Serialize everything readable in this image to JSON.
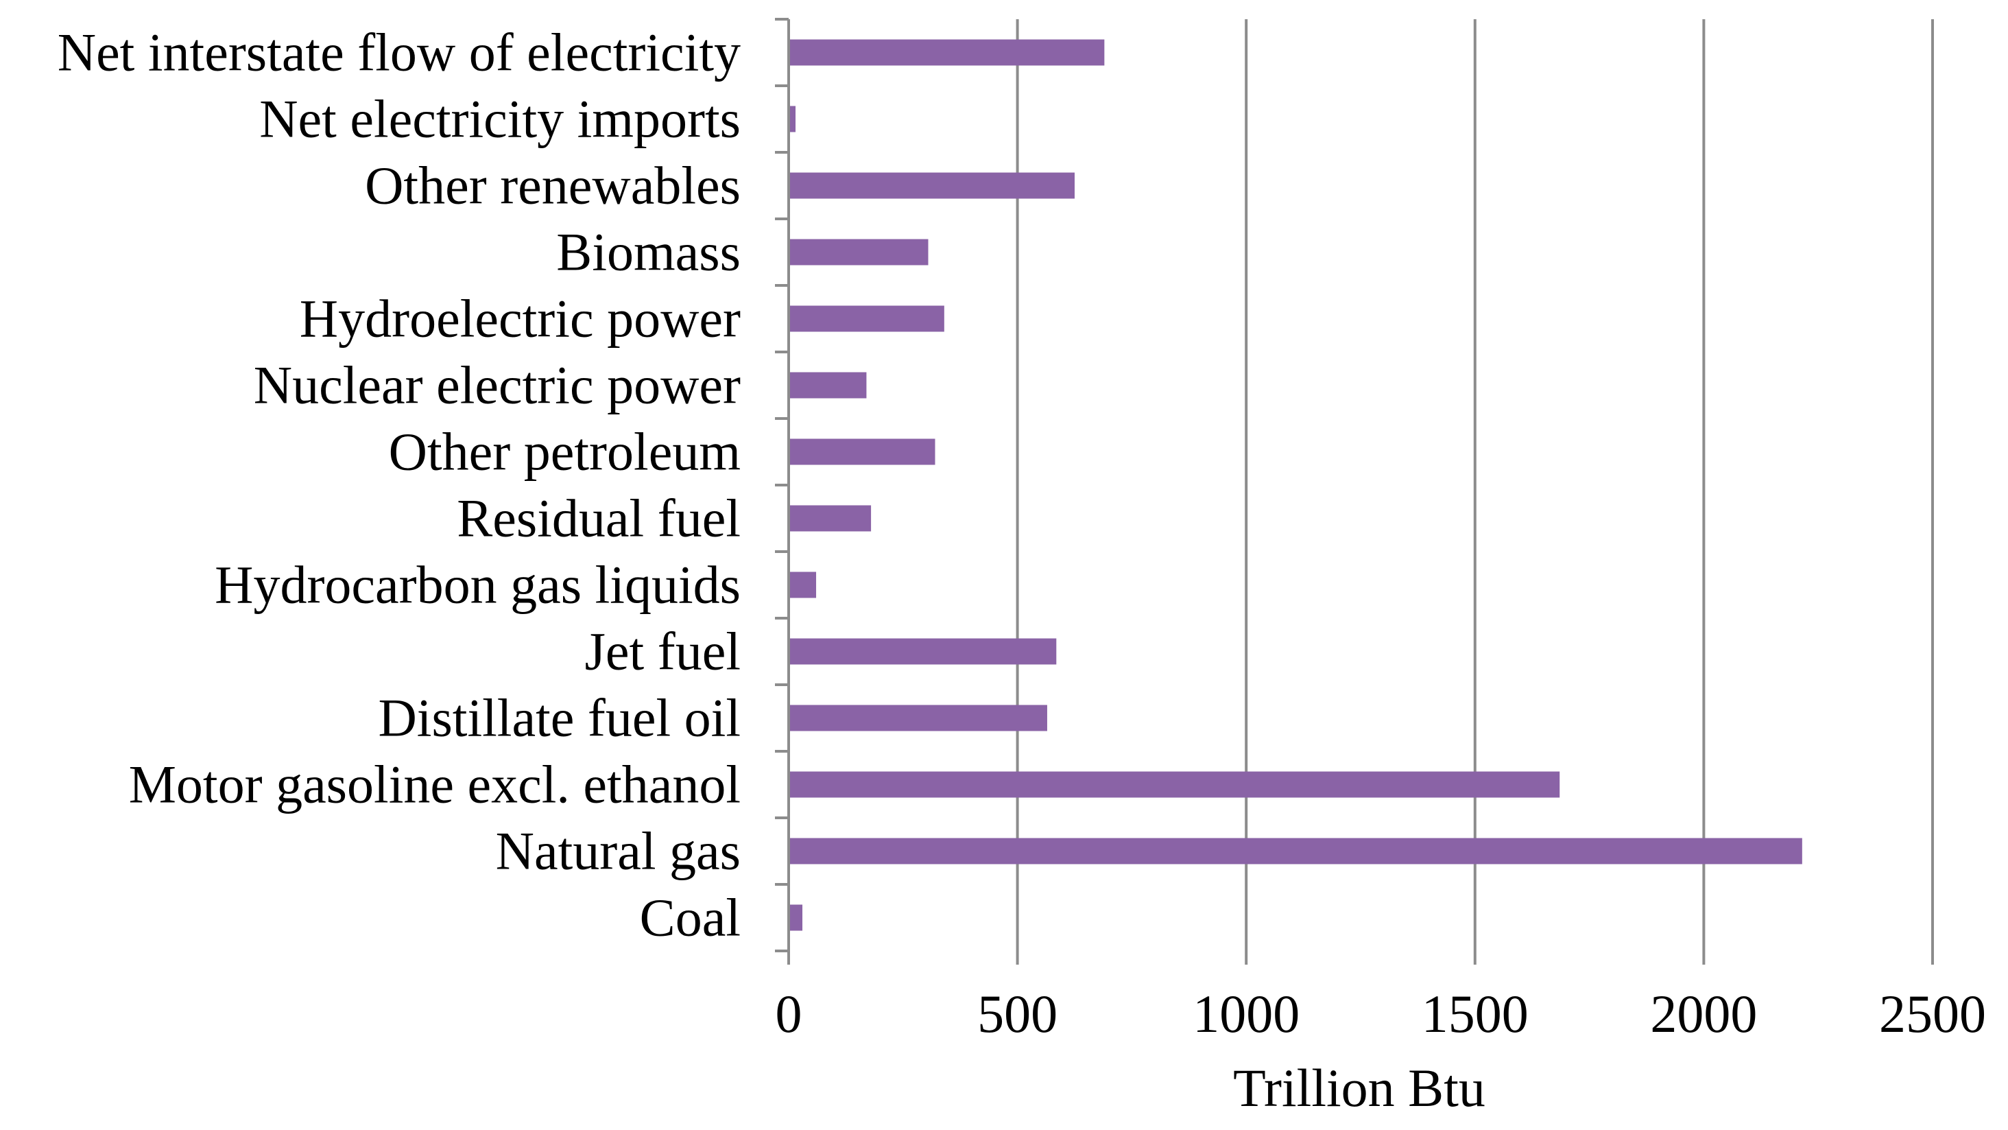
{
  "chart_data": {
    "type": "bar",
    "orientation": "horizontal",
    "title": "",
    "xlabel": "Trillion Btu",
    "ylabel": "",
    "xlim": [
      0,
      2500
    ],
    "xticks": [
      0,
      500,
      1000,
      1500,
      2000,
      2500
    ],
    "grid": "vertical",
    "legend": "none",
    "bar_color": "#8a63a6",
    "categories": [
      "Net interstate flow of electricity",
      "Net electricity imports",
      "Other renewables",
      "Biomass",
      "Hydroelectric power",
      "Nuclear electric power",
      "Other petroleum",
      "Residual fuel",
      "Hydrocarbon gas liquids",
      "Jet fuel",
      "Distillate fuel oil",
      "Motor gasoline excl. ethanol",
      "Natural gas",
      "Coal"
    ],
    "values": [
      690,
      15,
      625,
      305,
      340,
      170,
      320,
      180,
      60,
      585,
      565,
      1685,
      2215,
      30
    ]
  },
  "colors": {
    "bar": "#8a63a6",
    "grid": "#8c8c8c",
    "axis": "#8c8c8c"
  }
}
